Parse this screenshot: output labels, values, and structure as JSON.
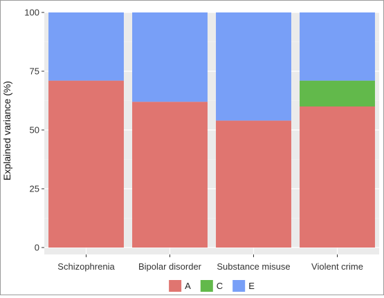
{
  "chart_data": {
    "type": "bar",
    "stacked": true,
    "categories": [
      "Schizophrenia",
      "Bipolar disorder",
      "Substance misuse",
      "Violent crime"
    ],
    "series": [
      {
        "name": "A",
        "color": "#e07570",
        "values": [
          71,
          62,
          54,
          60
        ]
      },
      {
        "name": "C",
        "color": "#62b94b",
        "values": [
          0,
          0,
          0,
          11
        ]
      },
      {
        "name": "E",
        "color": "#789ff7",
        "values": [
          29,
          38,
          46,
          29
        ]
      }
    ],
    "ylabel": "Explained variance (%)",
    "xlabel": "",
    "ylim": [
      0,
      100
    ],
    "yticks": [
      0,
      25,
      50,
      75,
      100
    ],
    "grid": true,
    "legend_position": "bottom",
    "panel_background": "#ebebeb"
  }
}
